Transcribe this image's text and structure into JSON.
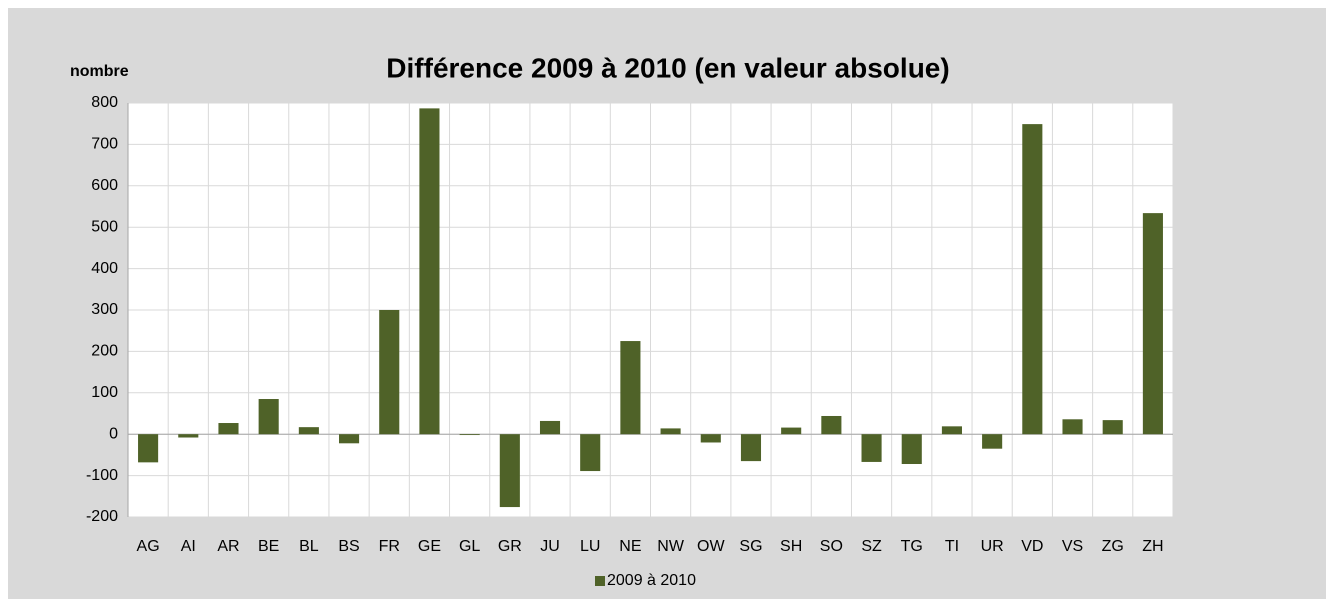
{
  "chart_data": {
    "type": "bar",
    "title": "Différence 2009 à 2010 (en valeur absolue)",
    "y_label": "nombre",
    "categories": [
      "AG",
      "AI",
      "AR",
      "BE",
      "BL",
      "BS",
      "FR",
      "GE",
      "GL",
      "GR",
      "JU",
      "LU",
      "NE",
      "NW",
      "OW",
      "SG",
      "SH",
      "SO",
      "SZ",
      "TG",
      "TI",
      "UR",
      "VD",
      "VS",
      "ZG",
      "ZH"
    ],
    "series": [
      {
        "name": "2009 à 2010",
        "color": "#4f6228",
        "values": [
          -68,
          -8,
          27,
          85,
          17,
          -22,
          300,
          787,
          -2,
          -176,
          32,
          -89,
          225,
          14,
          -20,
          -65,
          16,
          44,
          -67,
          -72,
          19,
          -35,
          749,
          36,
          34,
          534
        ]
      }
    ],
    "ylim": [
      -200,
      800
    ],
    "yticks": [
      -200,
      -100,
      0,
      100,
      200,
      300,
      400,
      500,
      600,
      700,
      800
    ],
    "grid": true,
    "legend": "bottom"
  }
}
